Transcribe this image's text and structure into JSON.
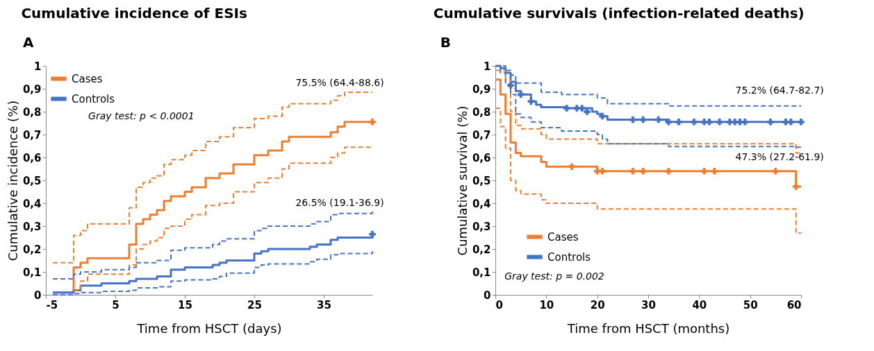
{
  "chart_data": [
    {
      "type": "step",
      "title": "Cumulative incidence of ESIs",
      "xlabel": "Time from HSCT (days)",
      "ylabel": "Cumulative incidence (%)",
      "xlim": [
        -5,
        42
      ],
      "xticks": [
        -5,
        5,
        15,
        25,
        35
      ],
      "ylim": [
        0,
        1
      ],
      "yticks": [
        {
          "value": 0,
          "label": "0"
        },
        {
          "value": 0.1,
          "label": "0,1"
        },
        {
          "value": 0.2,
          "label": "0,2"
        },
        {
          "value": 0.3,
          "label": "0,3"
        },
        {
          "value": 0.4,
          "label": "0,4"
        },
        {
          "value": 0.5,
          "label": "0,5"
        },
        {
          "value": 0.6,
          "label": "0,6"
        },
        {
          "value": 0.7,
          "label": "0,7"
        },
        {
          "value": 0.8,
          "label": "0,8"
        },
        {
          "value": 0.9,
          "label": "0,9"
        },
        {
          "value": 1,
          "label": "1"
        }
      ],
      "grid": false,
      "legend": "top left",
      "marker": "none",
      "annotations": [
        "A",
        "75.5% (64.4-88.6)",
        "26.5% (19.1-36.9)",
        "Gray test: p < 0.0001"
      ],
      "series": [
        {
          "name": "Cases",
          "type": "step",
          "color": "#ed7d31",
          "line_style": "solid",
          "x": [
            -4,
            -1,
            0,
            1,
            7,
            8,
            9,
            10,
            11,
            12,
            13,
            15,
            16,
            18,
            20,
            22,
            25,
            27,
            29,
            30,
            36,
            37,
            38,
            42
          ],
          "values": [
            0.01,
            0.12,
            0.14,
            0.16,
            0.22,
            0.31,
            0.33,
            0.35,
            0.37,
            0.41,
            0.43,
            0.45,
            0.47,
            0.51,
            0.53,
            0.57,
            0.61,
            0.63,
            0.67,
            0.69,
            0.71,
            0.735,
            0.755,
            0.755
          ]
        },
        {
          "name": "Controls",
          "type": "step",
          "color": "#4472c4",
          "line_style": "solid",
          "x": [
            -4,
            -1,
            0,
            3,
            7,
            8,
            11,
            13,
            15,
            19,
            20,
            21,
            25,
            26,
            27,
            33,
            34,
            36,
            37,
            42
          ],
          "values": [
            0.01,
            0.02,
            0.04,
            0.05,
            0.06,
            0.07,
            0.08,
            0.11,
            0.12,
            0.13,
            0.14,
            0.15,
            0.18,
            0.19,
            0.2,
            0.21,
            0.22,
            0.24,
            0.25,
            0.26
          ]
        },
        {
          "type": "step",
          "color": "#ed7d31",
          "line_style": "dashed",
          "x": [
            -4,
            -1,
            0,
            1,
            7,
            8,
            9,
            10,
            11,
            12,
            13,
            15,
            16,
            18,
            20,
            22,
            25,
            27,
            29,
            30,
            36,
            37,
            38,
            42
          ],
          "values": [
            0.14,
            0.26,
            0.28,
            0.31,
            0.38,
            0.47,
            0.49,
            0.51,
            0.52,
            0.57,
            0.59,
            0.61,
            0.63,
            0.67,
            0.69,
            0.73,
            0.77,
            0.78,
            0.82,
            0.835,
            0.85,
            0.87,
            0.885,
            0.885
          ]
        },
        {
          "type": "step",
          "color": "#ed7d31",
          "line_style": "dashed",
          "x": [
            -1,
            0,
            1,
            7,
            8,
            9,
            10,
            11,
            12,
            13,
            15,
            16,
            18,
            20,
            22,
            25,
            27,
            29,
            30,
            36,
            37,
            38,
            42
          ],
          "values": [
            0.02,
            0.06,
            0.09,
            0.13,
            0.2,
            0.22,
            0.235,
            0.25,
            0.29,
            0.3,
            0.33,
            0.35,
            0.39,
            0.4,
            0.45,
            0.49,
            0.51,
            0.55,
            0.575,
            0.6,
            0.62,
            0.645,
            0.645
          ]
        },
        {
          "type": "step",
          "color": "#4472c4",
          "line_style": "dashed",
          "x": [
            -4,
            -1,
            0,
            3,
            7,
            8,
            11,
            13,
            15,
            19,
            20,
            21,
            25,
            26,
            27,
            33,
            34,
            36,
            37,
            42
          ],
          "values": [
            0.07,
            0.09,
            0.1,
            0.11,
            0.12,
            0.14,
            0.15,
            0.195,
            0.205,
            0.22,
            0.235,
            0.245,
            0.28,
            0.29,
            0.3,
            0.31,
            0.32,
            0.35,
            0.355,
            0.37
          ]
        },
        {
          "type": "step",
          "color": "#4472c4",
          "line_style": "dashed",
          "x": [
            -4,
            -1,
            0,
            3,
            7,
            8,
            11,
            13,
            15,
            19,
            20,
            21,
            25,
            26,
            27,
            33,
            34,
            36,
            37,
            42
          ],
          "values": [
            0.0,
            0.005,
            0.01,
            0.015,
            0.02,
            0.03,
            0.035,
            0.06,
            0.065,
            0.07,
            0.08,
            0.095,
            0.12,
            0.13,
            0.135,
            0.145,
            0.155,
            0.175,
            0.18,
            0.19
          ]
        },
        {
          "type": "scatter",
          "marker": "cross",
          "color": "#ed7d31",
          "x": [
            42
          ],
          "values": [
            0.755
          ]
        },
        {
          "type": "scatter",
          "marker": "cross",
          "color": "#4472c4",
          "x": [
            42
          ],
          "values": [
            0.265
          ]
        }
      ]
    },
    {
      "type": "step",
      "title": "Cumulative survivals (infection-related deaths)",
      "xlabel": "Time from HSCT (months)",
      "ylabel": "Cumulative survival  (%)",
      "xlim": [
        0,
        60
      ],
      "xticks": [
        0,
        10,
        20,
        30,
        40,
        50,
        60
      ],
      "ylim": [
        0,
        1
      ],
      "yticks": [
        {
          "value": 0,
          "label": "0"
        },
        {
          "value": 0.1,
          "label": "0,1"
        },
        {
          "value": 0.2,
          "label": "0,2"
        },
        {
          "value": 0.3,
          "label": "0,3"
        },
        {
          "value": 0.4,
          "label": "0,4"
        },
        {
          "value": 0.5,
          "label": "0,5"
        },
        {
          "value": 0.6,
          "label": "0,6"
        },
        {
          "value": 0.7,
          "label": "0,7"
        },
        {
          "value": 0.8,
          "label": "0,8"
        },
        {
          "value": 0.9,
          "label": "0,9"
        },
        {
          "value": 1,
          "label": "1"
        }
      ],
      "grid": false,
      "legend": "bottom left",
      "marker": "none",
      "annotations": [
        "B",
        "75.2% (64.7-82.7)",
        "47.3% (27.2-61.9)",
        "Gray test: p = 0.002"
      ],
      "series": [
        {
          "name": "Cases",
          "type": "step",
          "color": "#ed7d31",
          "line_style": "solid",
          "x": [
            0,
            1,
            2,
            3,
            4,
            5,
            9,
            10,
            20,
            59,
            60
          ],
          "values": [
            0.94,
            0.875,
            0.79,
            0.665,
            0.62,
            0.605,
            0.58,
            0.56,
            0.54,
            0.473,
            0.473
          ]
        },
        {
          "name": "Controls",
          "type": "step",
          "color": "#4472c4",
          "line_style": "solid",
          "x": [
            0,
            1,
            2,
            3,
            4,
            5,
            7,
            8,
            9,
            14,
            19,
            20,
            21,
            22,
            34,
            60
          ],
          "values": [
            1.0,
            0.99,
            0.97,
            0.93,
            0.89,
            0.875,
            0.845,
            0.83,
            0.82,
            0.815,
            0.8,
            0.79,
            0.78,
            0.765,
            0.755,
            0.755
          ]
        },
        {
          "type": "step",
          "color": "#ed7d31",
          "line_style": "dashed",
          "x": [
            0,
            2,
            3,
            4,
            5,
            9,
            10,
            20,
            59,
            60
          ],
          "values": [
            0.98,
            0.94,
            0.8,
            0.74,
            0.725,
            0.7,
            0.68,
            0.66,
            0.62,
            0.62
          ]
        },
        {
          "type": "step",
          "color": "#ed7d31",
          "line_style": "dashed",
          "x": [
            0,
            1,
            2,
            3,
            4,
            5,
            9,
            10,
            20,
            59,
            60
          ],
          "values": [
            0.815,
            0.735,
            0.64,
            0.5,
            0.455,
            0.44,
            0.415,
            0.4,
            0.375,
            0.27,
            0.27
          ]
        },
        {
          "type": "step",
          "color": "#4472c4",
          "line_style": "dashed",
          "x": [
            0,
            2,
            3,
            4,
            9,
            13,
            20,
            22,
            34,
            60
          ],
          "values": [
            1.0,
            0.98,
            0.96,
            0.925,
            0.885,
            0.875,
            0.86,
            0.835,
            0.825,
            0.825
          ]
        },
        {
          "type": "step",
          "color": "#4472c4",
          "line_style": "dashed",
          "x": [
            0,
            1,
            2,
            3,
            4,
            5,
            7,
            9,
            13,
            20,
            21,
            22,
            34,
            59,
            60
          ],
          "values": [
            1.0,
            0.97,
            0.92,
            0.875,
            0.79,
            0.775,
            0.755,
            0.73,
            0.715,
            0.7,
            0.68,
            0.66,
            0.648,
            0.645,
            0.645
          ]
        },
        {
          "type": "scatter",
          "marker": "cross",
          "color": "#ed7d31",
          "x": [
            15,
            20,
            21,
            27,
            29,
            34,
            41,
            43,
            55,
            59
          ],
          "values": [
            0.56,
            0.54,
            0.54,
            0.54,
            0.54,
            0.54,
            0.54,
            0.54,
            0.54,
            0.473
          ]
        },
        {
          "type": "scatter",
          "marker": "cross",
          "color": "#4472c4",
          "x": [
            3,
            5,
            7,
            14,
            16,
            17,
            18,
            21,
            27,
            29,
            32,
            34,
            36,
            39,
            41,
            42,
            44,
            46,
            47,
            48,
            49,
            54,
            57,
            58,
            60
          ],
          "values": [
            0.915,
            0.875,
            0.845,
            0.815,
            0.815,
            0.815,
            0.8,
            0.78,
            0.765,
            0.765,
            0.765,
            0.755,
            0.755,
            0.755,
            0.755,
            0.755,
            0.755,
            0.755,
            0.755,
            0.755,
            0.755,
            0.755,
            0.755,
            0.755,
            0.755
          ]
        }
      ]
    }
  ]
}
